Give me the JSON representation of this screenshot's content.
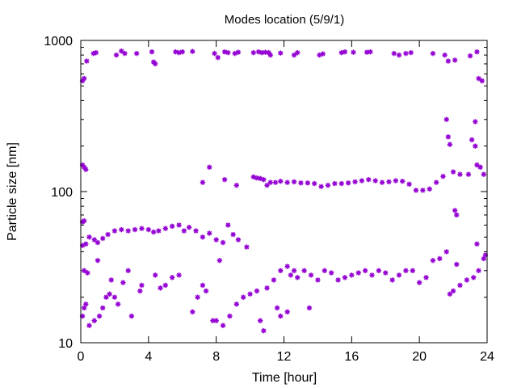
{
  "chart_data": {
    "type": "scatter",
    "title": "Modes location (5/9/1)",
    "xlabel": "Time [hour]",
    "ylabel": "Particle size [nm]",
    "xlim": [
      0,
      24
    ],
    "ylim": [
      10,
      1000
    ],
    "yscale": "log",
    "grid": false,
    "xticks": [
      0,
      4,
      8,
      12,
      16,
      20,
      24
    ],
    "xtick_labels": [
      "0",
      "4",
      "8",
      "12",
      "16",
      "20",
      "24"
    ],
    "yticks": [
      10,
      100,
      1000
    ],
    "ytick_labels": [
      "10",
      "100",
      "1000"
    ],
    "marker": "asterisk",
    "series_color": "#9400d3",
    "series": [
      {
        "points": [
          [
            0.1,
            540
          ],
          [
            0.2,
            560
          ],
          [
            0.35,
            730
          ],
          [
            0.75,
            820
          ],
          [
            0.9,
            830
          ],
          [
            2.1,
            800
          ],
          [
            2.4,
            850
          ],
          [
            2.6,
            820
          ],
          [
            3.3,
            820
          ],
          [
            4.2,
            840
          ],
          [
            4.3,
            720
          ],
          [
            4.4,
            700
          ],
          [
            5.6,
            840
          ],
          [
            5.8,
            830
          ],
          [
            6.0,
            840
          ],
          [
            6.6,
            845
          ],
          [
            7.9,
            820
          ],
          [
            8.1,
            770
          ],
          [
            8.5,
            840
          ],
          [
            8.7,
            830
          ],
          [
            9.1,
            820
          ],
          [
            9.3,
            835
          ],
          [
            10.2,
            830
          ],
          [
            10.5,
            840
          ],
          [
            10.7,
            830
          ],
          [
            10.9,
            835
          ],
          [
            11.1,
            830
          ],
          [
            11.2,
            800
          ],
          [
            11.8,
            825
          ],
          [
            12.6,
            800
          ],
          [
            12.8,
            830
          ],
          [
            14.1,
            800
          ],
          [
            14.3,
            815
          ],
          [
            15.4,
            830
          ],
          [
            15.6,
            840
          ],
          [
            16.1,
            835
          ],
          [
            16.9,
            835
          ],
          [
            17.1,
            840
          ],
          [
            18.5,
            820
          ],
          [
            18.8,
            800
          ],
          [
            19.2,
            820
          ],
          [
            19.5,
            830
          ],
          [
            20.8,
            820
          ],
          [
            21.5,
            800
          ],
          [
            21.7,
            730
          ],
          [
            22.1,
            740
          ],
          [
            23.0,
            790
          ],
          [
            23.4,
            840
          ],
          [
            23.5,
            560
          ],
          [
            23.7,
            540
          ]
        ]
      },
      {
        "points": [
          [
            0.1,
            150
          ],
          [
            0.2,
            145
          ],
          [
            0.3,
            140
          ],
          [
            0.1,
            63
          ],
          [
            0.2,
            64
          ],
          [
            7.2,
            115
          ],
          [
            7.6,
            145
          ],
          [
            8.5,
            120
          ],
          [
            9.2,
            110
          ],
          [
            10.2,
            125
          ],
          [
            10.4,
            123
          ],
          [
            10.6,
            122
          ],
          [
            10.8,
            120
          ],
          [
            11.0,
            110
          ],
          [
            11.2,
            115
          ],
          [
            11.5,
            115
          ],
          [
            11.8,
            117
          ],
          [
            12.2,
            115
          ],
          [
            12.6,
            116
          ],
          [
            13.0,
            114
          ],
          [
            13.4,
            114
          ],
          [
            13.8,
            113
          ],
          [
            14.2,
            108
          ],
          [
            14.6,
            110
          ],
          [
            15.0,
            113
          ],
          [
            15.4,
            113
          ],
          [
            15.8,
            114
          ],
          [
            16.2,
            116
          ],
          [
            16.6,
            118
          ],
          [
            17.0,
            120
          ],
          [
            17.4,
            118
          ],
          [
            17.8,
            115
          ],
          [
            18.2,
            116
          ],
          [
            18.6,
            118
          ],
          [
            19.0,
            117
          ],
          [
            19.4,
            112
          ],
          [
            19.8,
            102
          ],
          [
            20.2,
            102
          ],
          [
            20.6,
            104
          ],
          [
            21.0,
            115
          ],
          [
            21.4,
            126
          ],
          [
            21.6,
            300
          ],
          [
            21.7,
            230
          ],
          [
            21.8,
            205
          ],
          [
            22.0,
            135
          ],
          [
            22.1,
            75
          ],
          [
            22.2,
            70
          ],
          [
            22.4,
            130
          ],
          [
            23.1,
            220
          ],
          [
            23.3,
            200
          ],
          [
            23.4,
            150
          ],
          [
            23.6,
            145
          ],
          [
            23.8,
            130
          ],
          [
            23.3,
            290
          ],
          [
            22.9,
            130
          ]
        ]
      },
      {
        "points": [
          [
            0.1,
            44
          ],
          [
            0.3,
            45
          ],
          [
            0.5,
            50
          ],
          [
            0.8,
            48
          ],
          [
            1.0,
            46
          ],
          [
            1.3,
            49
          ],
          [
            1.6,
            52
          ],
          [
            2.0,
            55
          ],
          [
            2.4,
            56
          ],
          [
            2.8,
            55
          ],
          [
            3.2,
            56
          ],
          [
            3.6,
            57
          ],
          [
            4.0,
            56
          ],
          [
            4.3,
            54
          ],
          [
            4.6,
            55
          ],
          [
            5.0,
            57
          ],
          [
            5.4,
            59
          ],
          [
            5.8,
            60
          ],
          [
            6.1,
            55
          ],
          [
            6.4,
            58
          ],
          [
            6.8,
            55
          ],
          [
            7.2,
            50
          ],
          [
            7.6,
            53
          ],
          [
            8.0,
            48
          ],
          [
            8.4,
            46
          ],
          [
            8.7,
            60
          ],
          [
            9.0,
            52
          ],
          [
            9.3,
            48
          ],
          [
            9.8,
            43
          ]
        ]
      },
      {
        "points": [
          [
            0.1,
            15
          ],
          [
            0.2,
            17
          ],
          [
            0.3,
            18
          ],
          [
            0.2,
            30
          ],
          [
            0.4,
            29
          ],
          [
            0.5,
            13
          ],
          [
            0.8,
            14
          ],
          [
            1.0,
            35
          ],
          [
            1.1,
            15
          ],
          [
            1.3,
            17
          ],
          [
            1.5,
            20
          ],
          [
            1.7,
            21
          ],
          [
            2.0,
            20
          ],
          [
            2.2,
            18
          ],
          [
            2.5,
            25
          ],
          [
            2.8,
            30
          ],
          [
            1.8,
            26
          ],
          [
            3.0,
            15
          ],
          [
            3.5,
            22
          ],
          [
            3.6,
            24
          ],
          [
            4.4,
            28
          ],
          [
            4.7,
            23
          ],
          [
            5.0,
            24
          ],
          [
            5.4,
            27
          ],
          [
            5.8,
            28
          ],
          [
            6.6,
            16
          ],
          [
            6.9,
            20
          ],
          [
            7.2,
            24
          ],
          [
            7.4,
            22
          ],
          [
            7.8,
            14
          ],
          [
            8.0,
            14
          ],
          [
            8.2,
            35
          ],
          [
            8.4,
            13
          ],
          [
            8.8,
            15
          ],
          [
            9.2,
            18
          ],
          [
            9.6,
            20
          ],
          [
            10.0,
            21
          ],
          [
            10.4,
            22
          ],
          [
            10.6,
            14
          ],
          [
            10.8,
            12
          ],
          [
            11.0,
            23
          ],
          [
            11.4,
            26
          ],
          [
            11.8,
            30
          ],
          [
            12.2,
            32
          ],
          [
            12.6,
            30
          ],
          [
            12.4,
            28
          ],
          [
            12.8,
            27
          ],
          [
            13.2,
            30
          ],
          [
            13.6,
            28
          ],
          [
            14.0,
            26
          ],
          [
            14.4,
            30
          ],
          [
            14.8,
            29
          ],
          [
            15.2,
            26
          ],
          [
            15.6,
            27
          ],
          [
            16.0,
            28
          ],
          [
            16.4,
            29
          ],
          [
            16.8,
            30
          ],
          [
            17.2,
            28
          ],
          [
            17.6,
            30
          ],
          [
            18.0,
            29
          ],
          [
            18.4,
            26
          ],
          [
            18.8,
            28
          ],
          [
            19.2,
            30
          ],
          [
            19.6,
            30
          ],
          [
            20.0,
            25
          ],
          [
            20.4,
            27
          ],
          [
            20.8,
            35
          ],
          [
            21.2,
            36
          ],
          [
            21.6,
            40
          ],
          [
            21.8,
            21
          ],
          [
            22.0,
            22
          ],
          [
            22.4,
            24
          ],
          [
            22.8,
            26
          ],
          [
            23.2,
            27
          ],
          [
            23.5,
            30
          ],
          [
            23.8,
            36
          ],
          [
            23.9,
            38
          ],
          [
            22.2,
            33
          ],
          [
            23.4,
            45
          ],
          [
            11.8,
            15
          ],
          [
            12.2,
            16
          ],
          [
            13.5,
            17
          ],
          [
            11.6,
            17
          ]
        ]
      }
    ]
  }
}
